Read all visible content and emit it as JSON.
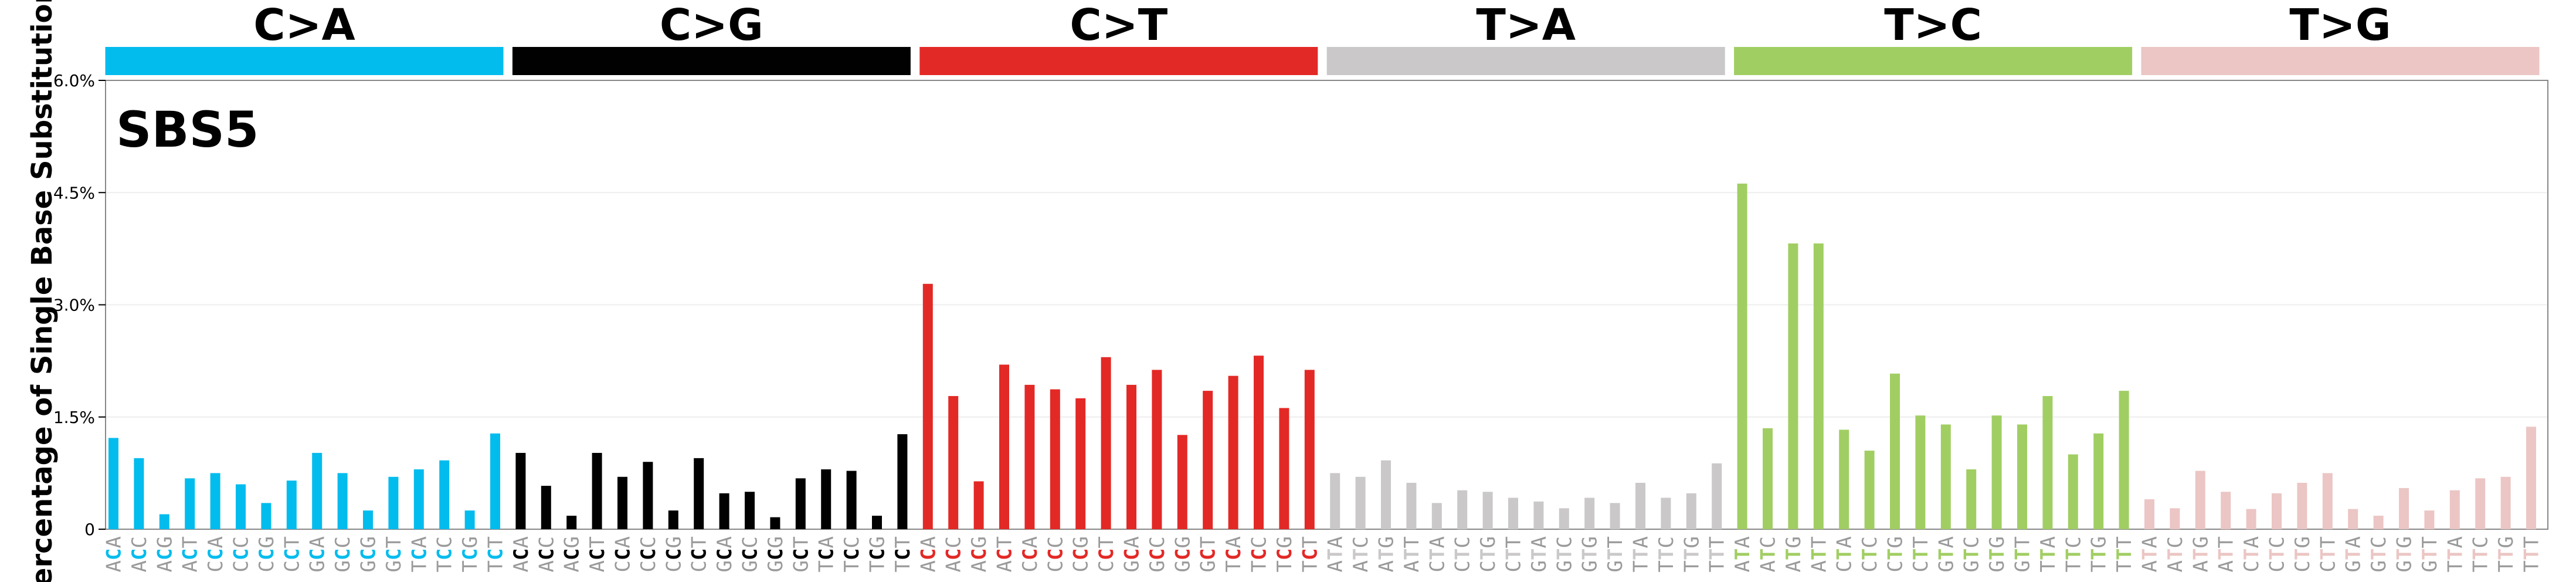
{
  "chart_data": {
    "type": "bar",
    "title": "SBS5",
    "ylabel": "Percentage of Single Base Substitutions",
    "ylim": [
      0,
      6.0
    ],
    "yticks": [
      {
        "value": 0,
        "label": "0"
      },
      {
        "value": 1.5,
        "label": "1.5%"
      },
      {
        "value": 3.0,
        "label": "3.0%"
      },
      {
        "value": 4.5,
        "label": "4.5%"
      },
      {
        "value": 6.0,
        "label": "6.0%"
      }
    ],
    "grid": true,
    "groups": [
      {
        "name": "C>A",
        "color": "#03bcee",
        "ref": "C",
        "categories": [
          "ACA",
          "ACC",
          "ACG",
          "ACT",
          "CCA",
          "CCC",
          "CCG",
          "CCT",
          "GCA",
          "GCC",
          "GCG",
          "GCT",
          "TCA",
          "TCC",
          "TCG",
          "TCT"
        ],
        "values": [
          1.22,
          0.95,
          0.2,
          0.68,
          0.75,
          0.6,
          0.35,
          0.65,
          1.02,
          0.75,
          0.25,
          0.7,
          0.8,
          0.92,
          0.25,
          1.28
        ]
      },
      {
        "name": "C>G",
        "color": "#010101",
        "ref": "C",
        "categories": [
          "ACA",
          "ACC",
          "ACG",
          "ACT",
          "CCA",
          "CCC",
          "CCG",
          "CCT",
          "GCA",
          "GCC",
          "GCG",
          "GCT",
          "TCA",
          "TCC",
          "TCG",
          "TCT"
        ],
        "values": [
          1.02,
          0.58,
          0.18,
          1.02,
          0.7,
          0.9,
          0.25,
          0.95,
          0.48,
          0.5,
          0.16,
          0.68,
          0.8,
          0.78,
          0.18,
          1.27
        ]
      },
      {
        "name": "C>T",
        "color": "#e32926",
        "ref": "C",
        "categories": [
          "ACA",
          "ACC",
          "ACG",
          "ACT",
          "CCA",
          "CCC",
          "CCG",
          "CCT",
          "GCA",
          "GCC",
          "GCG",
          "GCT",
          "TCA",
          "TCC",
          "TCG",
          "TCT"
        ],
        "values": [
          3.28,
          1.78,
          0.64,
          2.2,
          1.93,
          1.87,
          1.75,
          2.3,
          1.93,
          2.13,
          1.26,
          1.85,
          2.05,
          2.32,
          1.62,
          2.13
        ]
      },
      {
        "name": "T>A",
        "color": "#cac8c9",
        "ref": "T",
        "categories": [
          "ATA",
          "ATC",
          "ATG",
          "ATT",
          "CTA",
          "CTC",
          "CTG",
          "CTT",
          "GTA",
          "GTC",
          "GTG",
          "GTT",
          "TTA",
          "TTC",
          "TTG",
          "TTT"
        ],
        "values": [
          0.75,
          0.7,
          0.92,
          0.62,
          0.35,
          0.52,
          0.5,
          0.42,
          0.37,
          0.28,
          0.42,
          0.35,
          0.62,
          0.42,
          0.48,
          0.88
        ]
      },
      {
        "name": "T>C",
        "color": "#a1ce63",
        "ref": "T",
        "categories": [
          "ATA",
          "ATC",
          "ATG",
          "ATT",
          "CTA",
          "CTC",
          "CTG",
          "CTT",
          "GTA",
          "GTC",
          "GTG",
          "GTT",
          "TTA",
          "TTC",
          "TTG",
          "TTT"
        ],
        "values": [
          4.62,
          1.35,
          3.82,
          3.82,
          1.33,
          1.05,
          2.08,
          1.52,
          1.4,
          0.8,
          1.52,
          1.4,
          1.78,
          1.0,
          1.28,
          1.85
        ]
      },
      {
        "name": "T>G",
        "color": "#ebc6c4",
        "ref": "T",
        "categories": [
          "ATA",
          "ATC",
          "ATG",
          "ATT",
          "CTA",
          "CTC",
          "CTG",
          "CTT",
          "GTA",
          "GTC",
          "GTG",
          "GTT",
          "TTA",
          "TTC",
          "TTG",
          "TTT"
        ],
        "values": [
          0.4,
          0.28,
          0.78,
          0.5,
          0.27,
          0.48,
          0.62,
          0.75,
          0.27,
          0.18,
          0.55,
          0.25,
          0.52,
          0.68,
          0.7,
          1.37
        ]
      }
    ]
  }
}
